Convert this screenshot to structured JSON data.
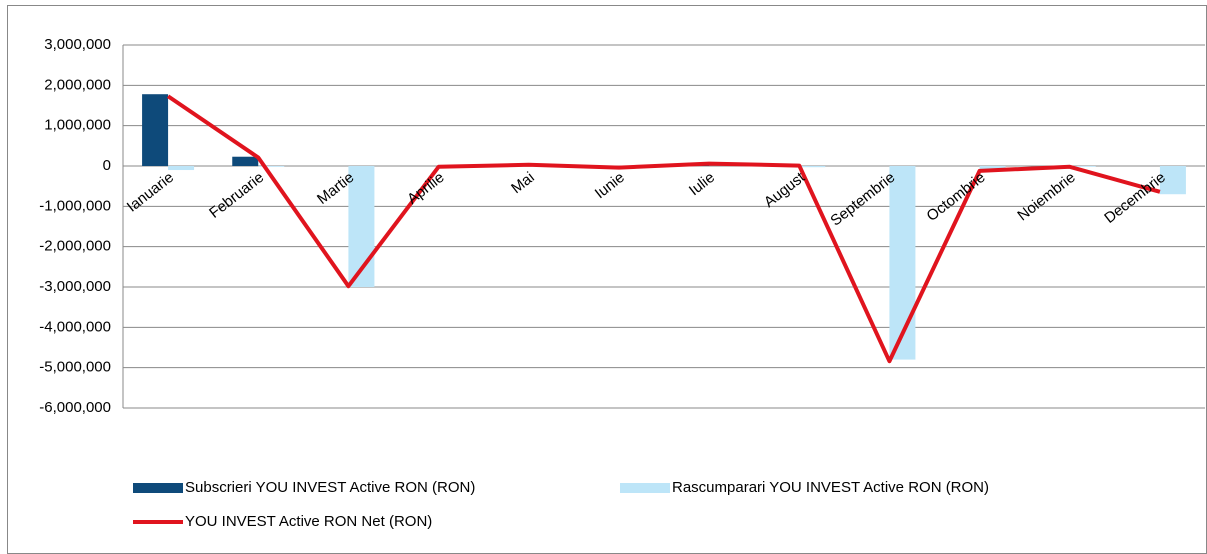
{
  "chart_data": {
    "type": "bar",
    "categories": [
      "Ianuarie",
      "Februarie",
      "Martie",
      "Aprilie",
      "Mai",
      "Iunie",
      "Iulie",
      "August",
      "Septembrie",
      "Octombrie",
      "Noiembrie",
      "Decembrie"
    ],
    "series": [
      {
        "name": "Subscrieri YOU INVEST Active RON (RON)",
        "type": "bar",
        "color": "#0e4a7a",
        "values": [
          1780000,
          230000,
          0,
          0,
          30000,
          0,
          40000,
          20000,
          0,
          0,
          0,
          0
        ]
      },
      {
        "name": "Rascumparari YOU INVEST Active RON (RON)",
        "type": "bar",
        "color": "#bde5f8",
        "values": [
          -100000,
          -20000,
          -3000000,
          -20000,
          0,
          -30000,
          0,
          -30000,
          -4800000,
          -100000,
          -20000,
          -700000
        ]
      },
      {
        "name": "YOU INVEST Active RON Net (RON)",
        "type": "line",
        "color": "#e0141e",
        "values": [
          1730000,
          210000,
          -2980000,
          -20000,
          30000,
          -40000,
          60000,
          10000,
          -4840000,
          -120000,
          -20000,
          -640000
        ]
      }
    ],
    "ylim": [
      -6000000,
      3000000
    ],
    "yticks": [
      {
        "value": -6000000,
        "label": "-6,000,000"
      },
      {
        "value": -5000000,
        "label": "-5,000,000"
      },
      {
        "value": -4000000,
        "label": "-4,000,000"
      },
      {
        "value": -3000000,
        "label": "-3,000,000"
      },
      {
        "value": -2000000,
        "label": "-2,000,000"
      },
      {
        "value": -1000000,
        "label": "-1,000,000"
      },
      0,
      {
        "value": 1000000,
        "label": "1,000,000"
      },
      {
        "value": 2000000,
        "label": "2,000,000"
      },
      {
        "value": 3000000,
        "label": "3,000,000"
      }
    ],
    "grid": true,
    "legend": "bottom"
  }
}
